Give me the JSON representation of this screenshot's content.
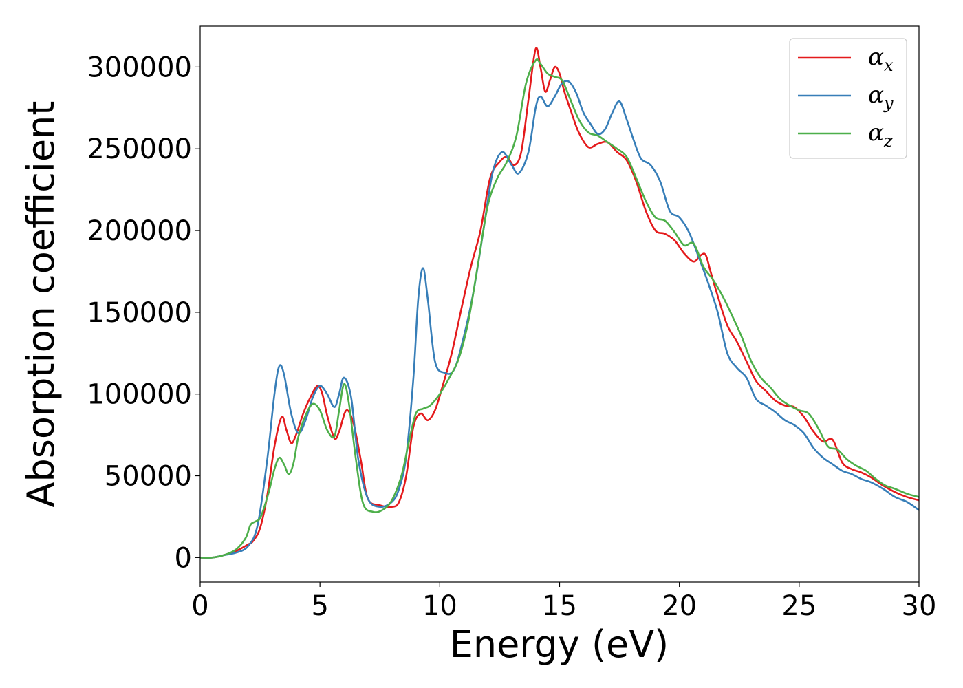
{
  "chart_data": {
    "type": "line",
    "xlabel": "Energy (eV)",
    "ylabel": "Absorption coefficient",
    "xlim": [
      0,
      30
    ],
    "ylim": [
      -15000,
      325000
    ],
    "xticks": [
      0,
      5,
      10,
      15,
      20,
      25,
      30
    ],
    "yticks": [
      0,
      50000,
      100000,
      150000,
      200000,
      250000,
      300000
    ],
    "grid": false,
    "legend_position": "top-right",
    "series": [
      {
        "name": "α",
        "subscript": "x",
        "color": "#e41a1c",
        "x": [
          0,
          0.5,
          1,
          1.5,
          2,
          2.2,
          2.5,
          2.8,
          3.1,
          3.4,
          3.6,
          3.8,
          4,
          4.3,
          4.6,
          4.9,
          5.1,
          5.3,
          5.6,
          5.8,
          6.1,
          6.4,
          6.7,
          7,
          7.5,
          8,
          8.3,
          8.6,
          8.9,
          9.2,
          9.5,
          9.8,
          10.1,
          10.5,
          10.9,
          11.3,
          11.7,
          12.1,
          12.5,
          12.8,
          13.1,
          13.4,
          13.7,
          14,
          14.2,
          14.4,
          14.6,
          14.8,
          15,
          15.2,
          15.5,
          15.8,
          16.2,
          16.6,
          17,
          17.4,
          17.8,
          18.2,
          18.6,
          19,
          19.4,
          19.8,
          20.2,
          20.6,
          20.9,
          21.1,
          21.3,
          21.6,
          22,
          22.4,
          22.8,
          23.2,
          23.6,
          24,
          24.4,
          24.8,
          25.2,
          25.6,
          26,
          26.4,
          26.8,
          27.2,
          27.6,
          28,
          28.5,
          29,
          29.5,
          30
        ],
        "y": [
          0,
          0,
          1500,
          4000,
          8000,
          10000,
          18000,
          38000,
          68000,
          86000,
          78000,
          70000,
          75000,
          88000,
          98000,
          105000,
          100000,
          87000,
          73000,
          77000,
          90000,
          82000,
          60000,
          36000,
          32000,
          31000,
          34000,
          50000,
          80000,
          88000,
          84000,
          90000,
          104000,
          125000,
          152000,
          178000,
          200000,
          232000,
          242000,
          245000,
          240000,
          248000,
          280000,
          311000,
          300000,
          285000,
          292000,
          300000,
          296000,
          285000,
          272000,
          260000,
          251000,
          253000,
          254000,
          248000,
          243000,
          230000,
          212000,
          200000,
          198000,
          194000,
          186000,
          181000,
          185000,
          185000,
          175000,
          160000,
          142000,
          132000,
          120000,
          108000,
          102000,
          96000,
          93000,
          92000,
          86000,
          77000,
          71000,
          72000,
          58000,
          54000,
          52000,
          49000,
          44000,
          40000,
          37000,
          35000
        ]
      },
      {
        "name": "α",
        "subscript": "y",
        "color": "#377eb8",
        "x": [
          0,
          0.5,
          1,
          1.5,
          2,
          2.4,
          2.8,
          3.1,
          3.3,
          3.5,
          3.8,
          4.1,
          4.4,
          4.7,
          5,
          5.3,
          5.6,
          5.8,
          6,
          6.3,
          6.6,
          7,
          7.5,
          8,
          8.3,
          8.6,
          8.9,
          9.1,
          9.3,
          9.5,
          9.8,
          10.2,
          10.6,
          11,
          11.4,
          11.8,
          12.2,
          12.6,
          13,
          13.3,
          13.7,
          14,
          14.2,
          14.5,
          14.8,
          15.1,
          15.4,
          15.7,
          16,
          16.3,
          16.6,
          16.9,
          17.2,
          17.5,
          17.8,
          18.1,
          18.4,
          18.8,
          19.2,
          19.6,
          20,
          20.4,
          20.8,
          21.2,
          21.6,
          22,
          22.4,
          22.8,
          23.2,
          23.6,
          24,
          24.4,
          24.8,
          25.2,
          25.6,
          26,
          26.4,
          26.8,
          27.2,
          27.6,
          28,
          28.5,
          29,
          29.5,
          30
        ],
        "y": [
          0,
          0,
          1500,
          3000,
          7000,
          20000,
          60000,
          100000,
          117000,
          112000,
          88000,
          76000,
          84000,
          98000,
          105000,
          100000,
          92000,
          100000,
          110000,
          98000,
          60000,
          36000,
          31000,
          34000,
          42000,
          62000,
          110000,
          158000,
          177000,
          158000,
          120000,
          113000,
          115000,
          135000,
          162000,
          198000,
          235000,
          248000,
          240000,
          235000,
          248000,
          275000,
          282000,
          276000,
          282000,
          290000,
          291000,
          284000,
          272000,
          265000,
          259000,
          262000,
          272000,
          279000,
          268000,
          255000,
          244000,
          240000,
          230000,
          212000,
          208000,
          199000,
          184000,
          168000,
          150000,
          125000,
          116000,
          110000,
          97000,
          93000,
          89000,
          84000,
          81000,
          76000,
          67000,
          61000,
          57000,
          53000,
          51000,
          48000,
          46000,
          42000,
          37000,
          34000,
          29000
        ]
      },
      {
        "name": "α",
        "subscript": "z",
        "color": "#4daf4a",
        "x": [
          0,
          0.5,
          1,
          1.5,
          1.9,
          2.1,
          2.3,
          2.5,
          2.7,
          2.9,
          3.1,
          3.3,
          3.5,
          3.7,
          3.9,
          4.1,
          4.4,
          4.7,
          5,
          5.3,
          5.6,
          5.8,
          6,
          6.2,
          6.5,
          6.8,
          7.2,
          7.6,
          8,
          8.4,
          8.7,
          9,
          9.3,
          9.6,
          10,
          10.4,
          10.8,
          11.2,
          11.6,
          12,
          12.4,
          12.8,
          13.2,
          13.6,
          14,
          14.2,
          14.5,
          14.8,
          15.1,
          15.4,
          15.8,
          16.2,
          16.6,
          17,
          17.4,
          17.8,
          18.2,
          18.6,
          19,
          19.4,
          19.8,
          20.2,
          20.6,
          21,
          21.4,
          21.8,
          22.2,
          22.6,
          23,
          23.4,
          23.8,
          24.2,
          24.6,
          25,
          25.4,
          25.8,
          26.2,
          26.6,
          27,
          27.4,
          27.8,
          28.2,
          28.6,
          29,
          29.5,
          30
        ],
        "y": [
          0,
          0,
          1500,
          5000,
          12000,
          20000,
          22000,
          24000,
          32000,
          42000,
          54000,
          61000,
          57000,
          51000,
          58000,
          74000,
          87000,
          94000,
          90000,
          78000,
          74000,
          90000,
          106000,
          95000,
          60000,
          33000,
          28000,
          29000,
          35000,
          50000,
          70000,
          88000,
          91000,
          93000,
          100000,
          110000,
          122000,
          145000,
          180000,
          215000,
          232000,
          242000,
          258000,
          290000,
          304000,
          302000,
          296000,
          294000,
          292000,
          282000,
          268000,
          260000,
          258000,
          254000,
          250000,
          245000,
          232000,
          218000,
          208000,
          206000,
          199000,
          191000,
          192000,
          178000,
          170000,
          160000,
          148000,
          135000,
          120000,
          110000,
          104000,
          97000,
          93000,
          90000,
          88000,
          79000,
          68000,
          66000,
          60000,
          56000,
          53000,
          48000,
          44000,
          42000,
          39000,
          37000
        ]
      }
    ]
  }
}
